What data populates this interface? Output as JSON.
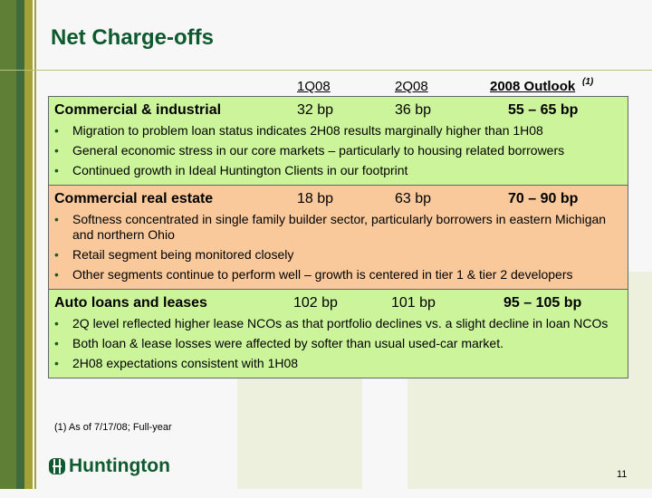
{
  "title": "Net Charge-offs",
  "columns": {
    "q1": "1Q08",
    "q2": "2Q08",
    "outlook": "2008 Outlook",
    "outlook_note": "(1)"
  },
  "sections": [
    {
      "name": "Commercial & industrial",
      "q1": "32 bp",
      "q2": "36 bp",
      "outlook": "55 – 65 bp",
      "bullets": [
        "Migration to problem loan status indicates 2H08 results marginally higher than 1H08",
        "General economic stress in our core markets – particularly to housing related borrowers",
        "Continued growth in Ideal Huntington Clients in our footprint"
      ]
    },
    {
      "name": "Commercial real estate",
      "q1": "18 bp",
      "q2": "63 bp",
      "outlook": "70 – 90 bp",
      "bullets": [
        "Softness concentrated in single family builder sector, particularly borrowers in eastern Michigan and northern Ohio",
        "Retail segment being monitored closely",
        "Other segments continue to perform well – growth is centered in tier 1 & tier 2 developers"
      ]
    },
    {
      "name": "Auto loans and leases",
      "q1": "102 bp",
      "q2": "101 bp",
      "outlook": "95 – 105 bp",
      "bullets": [
        "2Q level reflected higher lease NCOs as that portfolio declines vs. a slight decline in loan NCOs",
        "Both loan & lease losses were affected by softer than usual used-car market.",
        "2H08 expectations consistent with 1H08"
      ]
    }
  ],
  "footnote": "(1)  As of 7/17/08; Full-year",
  "logo": "Huntington",
  "page_number": "11"
}
